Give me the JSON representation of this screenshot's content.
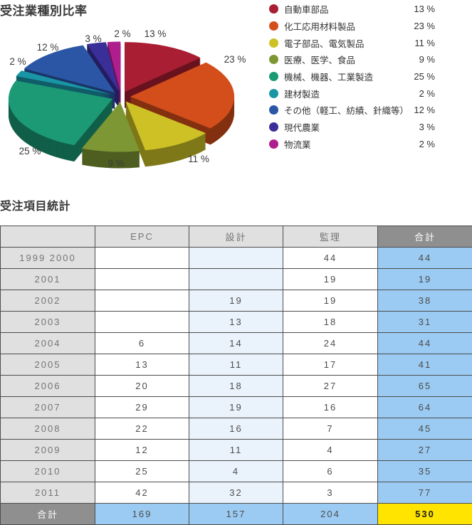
{
  "chart_data": [
    {
      "type": "pie",
      "style": "3d-exploded",
      "title": "受注業種別比率",
      "unit": "%",
      "legend_position": "right",
      "slices": [
        {
          "label": "自動車部品",
          "value": 13,
          "color": "#a91e32"
        },
        {
          "label": "化工応用材料製品",
          "value": 23,
          "color": "#d44e1c"
        },
        {
          "label": "電子部品、電気製品",
          "value": 11,
          "color": "#cdc126"
        },
        {
          "label": "医療、医学、食品",
          "value": 9,
          "color": "#7d9734"
        },
        {
          "label": "機械、機器、工業製造",
          "value": 25,
          "color": "#1b9a75"
        },
        {
          "label": "建材製造",
          "value": 2,
          "color": "#1995a6"
        },
        {
          "label": "その他（軽工、紡績、針織等）",
          "value": 12,
          "color": "#2a56a5"
        },
        {
          "label": "現代農業",
          "value": 3,
          "color": "#3a2e99"
        },
        {
          "label": "物流業",
          "value": 2,
          "color": "#ae1f8d"
        }
      ]
    },
    {
      "type": "table",
      "title": "受注項目統計",
      "columns": [
        "",
        "EPC",
        "設計",
        "監理",
        "合計"
      ],
      "rows": [
        [
          "1999 2000",
          "",
          "",
          "44",
          "44"
        ],
        [
          "2001",
          "",
          "",
          "19",
          "19"
        ],
        [
          "2002",
          "",
          "19",
          "19",
          "38"
        ],
        [
          "2003",
          "",
          "13",
          "18",
          "31"
        ],
        [
          "2004",
          "6",
          "14",
          "24",
          "44"
        ],
        [
          "2005",
          "13",
          "11",
          "17",
          "41"
        ],
        [
          "2006",
          "20",
          "18",
          "27",
          "65"
        ],
        [
          "2007",
          "29",
          "19",
          "16",
          "64"
        ],
        [
          "2008",
          "22",
          "16",
          "7",
          "45"
        ],
        [
          "2009",
          "12",
          "11",
          "4",
          "27"
        ],
        [
          "2010",
          "25",
          "4",
          "6",
          "35"
        ],
        [
          "2011",
          "42",
          "32",
          "3",
          "77"
        ]
      ],
      "total_row": [
        "合計",
        "169",
        "157",
        "204",
        "530"
      ],
      "colors": {
        "header_bg": "#e0e0e0",
        "total_header_bg": "#8f8f8f",
        "design_col_bg": "#eaf3fc",
        "total_col_bg": "#9bcbf2",
        "grand_total_bg": "#ffe400",
        "border": "#4d4d4d"
      }
    }
  ]
}
